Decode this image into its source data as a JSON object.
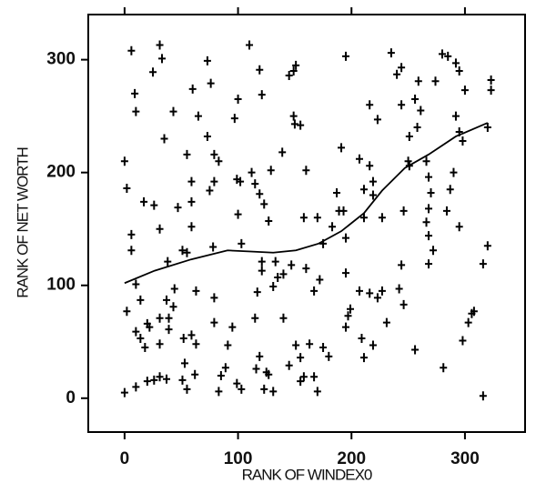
{
  "chart_data": {
    "type": "scatter",
    "xlabel": "RANK OF WINDEX0",
    "ylabel": "RANK OF NET WORTH",
    "xlim": [
      -32,
      353
    ],
    "ylim": [
      -30,
      340
    ],
    "xticks": [
      0,
      100,
      200,
      300
    ],
    "yticks": [
      0,
      100,
      200,
      300
    ],
    "color": "#000000",
    "series": [
      {
        "mode": "markers",
        "x": [
          0,
          2,
          6,
          9,
          10,
          6,
          6,
          2,
          0,
          10,
          10,
          14,
          10,
          14,
          18,
          20,
          22,
          20,
          26,
          31,
          37,
          17,
          26,
          31,
          25,
          31,
          33,
          35,
          38,
          43,
          31,
          31,
          37,
          43,
          44,
          39,
          39,
          52,
          53,
          51,
          55,
          62,
          59,
          63,
          63,
          51,
          55,
          59,
          47,
          55,
          59,
          60,
          65,
          59,
          73,
          76,
          73,
          79,
          75,
          79,
          83,
          78,
          79,
          79,
          83,
          85,
          89,
          91,
          95,
          99,
          100,
          97,
          102,
          100,
          103,
          99,
          103,
          110,
          119,
          121,
          112,
          115,
          129,
          119,
          123,
          127,
          121,
          121,
          117,
          115,
          119,
          116,
          125,
          123,
          131,
          127,
          149,
          151,
          145,
          149,
          155,
          150,
          139,
          133,
          135,
          131,
          140,
          147,
          140,
          145,
          151,
          155,
          155,
          158,
          158,
          160,
          170,
          160,
          167,
          163,
          170,
          167,
          172,
          175,
          175,
          180,
          183,
          189,
          187,
          191,
          195,
          193,
          195,
          195,
          199,
          197,
          195,
          209,
          211,
          219,
          207,
          211,
          216,
          219,
          211,
          207,
          216,
          223,
          227,
          231,
          216,
          223,
          219,
          227,
          235,
          240,
          244,
          244,
          246,
          244,
          242,
          246,
          250,
          251,
          251,
          256,
          258,
          261,
          259,
          256,
          266,
          268,
          270,
          268,
          266,
          268,
          272,
          268,
          274,
          280,
          285,
          292,
          295,
          300,
          292,
          295,
          298,
          290,
          287,
          295,
          284,
          298,
          303,
          306,
          308,
          281,
          316,
          316,
          320,
          323,
          323,
          320
        ],
        "y": [
          210,
          186,
          308,
          270,
          254,
          145,
          131,
          77,
          5,
          10,
          101,
          87,
          59,
          53,
          45,
          66,
          63,
          15,
          16,
          19,
          17,
          174,
          171,
          150,
          289,
          313,
          301,
          230,
          121,
          254,
          71,
          48,
          87,
          81,
          97,
          71,
          61,
          53,
          31,
          16,
          8,
          21,
          56,
          48,
          95,
          131,
          129,
          152,
          169,
          216,
          192,
          274,
          250,
          174,
          299,
          279,
          232,
          216,
          184,
          192,
          210,
          134,
          89,
          67,
          6,
          20,
          27,
          47,
          63,
          194,
          265,
          248,
          192,
          163,
          137,
          13,
          8,
          313,
          291,
          269,
          200,
          190,
          202,
          181,
          172,
          157,
          121,
          113,
          94,
          71,
          37,
          26,
          23,
          8,
          6,
          21,
          290,
          295,
          286,
          250,
          242,
          243,
          218,
          121,
          107,
          99,
          110,
          118,
          71,
          29,
          47,
          36,
          15,
          19,
          160,
          202,
          160,
          115,
          95,
          48,
          6,
          19,
          105,
          137,
          45,
          37,
          152,
          166,
          182,
          222,
          303,
          166,
          142,
          111,
          79,
          73,
          63,
          53,
          36,
          47,
          212,
          185,
          206,
          180,
          160,
          95,
          93,
          89,
          95,
          67,
          260,
          247,
          192,
          160,
          306,
          287,
          293,
          260,
          166,
          118,
          97,
          83,
          210,
          206,
          232,
          265,
          240,
          255,
          281,
          43,
          210,
          196,
          182,
          168,
          156,
          144,
          131,
          119,
          281,
          305,
          303,
          297,
          290,
          273,
          250,
          236,
          228,
          200,
          185,
          152,
          166,
          51,
          67,
          75,
          77,
          27,
          119,
          2,
          135,
          282,
          273,
          240
        ]
      },
      {
        "mode": "line",
        "x": [
          0,
          26.5,
          58.6,
          90.8,
          111,
          131,
          151,
          171,
          191,
          211,
          227,
          247,
          268,
          292,
          320
        ],
        "y": [
          102,
          113,
          123,
          131,
          130,
          129,
          131,
          137,
          148,
          164,
          184,
          204,
          216,
          232,
          244
        ]
      }
    ]
  }
}
